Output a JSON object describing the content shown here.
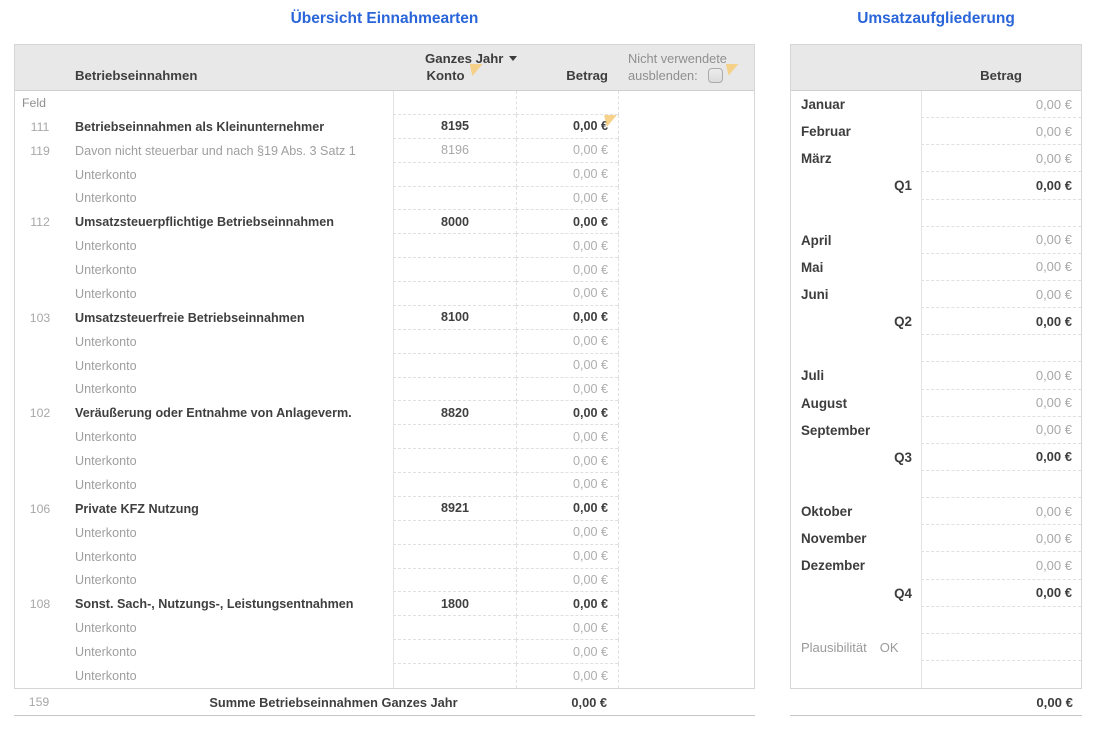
{
  "colors": {
    "title_blue": "#2a65d9",
    "header_bg": "#e8e8e8",
    "comment_flag": "#f6cd7d"
  },
  "icons": {
    "period_dropdown": "chevron-down-icon",
    "comment_marker": "comment-flag-icon",
    "hide_unused": "checkbox-icon"
  },
  "left_table": {
    "title": "Übersicht Einnahmearten",
    "period_selector": "Ganzes Jahr",
    "header": {
      "name": "Betriebseinnahmen",
      "konto": "Konto",
      "betrag": "Betrag",
      "hide_line1": "Nicht verwendete",
      "hide_line2": "ausblenden:",
      "checkbox_checked": false
    },
    "rows": [
      {
        "feld": "Feld",
        "label": "",
        "konto": "",
        "betrag": "",
        "bold": false,
        "comment": false,
        "feldrow": true
      },
      {
        "feld": "111",
        "label": "Betriebseinnahmen als Kleinunternehmer",
        "konto": "8195",
        "betrag": "0,00 €",
        "bold": true,
        "comment": true
      },
      {
        "feld": "119",
        "label": "Davon nicht steuerbar und nach §19 Abs. 3 Satz 1",
        "konto": "8196",
        "betrag": "0,00 €",
        "bold": false,
        "comment": false
      },
      {
        "feld": "",
        "label": "Unterkonto",
        "konto": "",
        "betrag": "0,00 €",
        "bold": false,
        "comment": false
      },
      {
        "feld": "",
        "label": "Unterkonto",
        "konto": "",
        "betrag": "0,00 €",
        "bold": false,
        "comment": false
      },
      {
        "feld": "112",
        "label": "Umsatzsteuerpflichtige Betriebseinnahmen",
        "konto": "8000",
        "betrag": "0,00 €",
        "bold": true,
        "comment": false
      },
      {
        "feld": "",
        "label": "Unterkonto",
        "konto": "",
        "betrag": "0,00 €",
        "bold": false,
        "comment": false
      },
      {
        "feld": "",
        "label": "Unterkonto",
        "konto": "",
        "betrag": "0,00 €",
        "bold": false,
        "comment": false
      },
      {
        "feld": "",
        "label": "Unterkonto",
        "konto": "",
        "betrag": "0,00 €",
        "bold": false,
        "comment": false
      },
      {
        "feld": "103",
        "label": "Umsatzsteuerfreie Betriebseinnahmen",
        "konto": "8100",
        "betrag": "0,00 €",
        "bold": true,
        "comment": false
      },
      {
        "feld": "",
        "label": "Unterkonto",
        "konto": "",
        "betrag": "0,00 €",
        "bold": false,
        "comment": false
      },
      {
        "feld": "",
        "label": "Unterkonto",
        "konto": "",
        "betrag": "0,00 €",
        "bold": false,
        "comment": false
      },
      {
        "feld": "",
        "label": "Unterkonto",
        "konto": "",
        "betrag": "0,00 €",
        "bold": false,
        "comment": false
      },
      {
        "feld": "102",
        "label": "Veräußerung oder Entnahme von Anlageverm.",
        "konto": "8820",
        "betrag": "0,00 €",
        "bold": true,
        "comment": false
      },
      {
        "feld": "",
        "label": "Unterkonto",
        "konto": "",
        "betrag": "0,00 €",
        "bold": false,
        "comment": false
      },
      {
        "feld": "",
        "label": "Unterkonto",
        "konto": "",
        "betrag": "0,00 €",
        "bold": false,
        "comment": false
      },
      {
        "feld": "",
        "label": "Unterkonto",
        "konto": "",
        "betrag": "0,00 €",
        "bold": false,
        "comment": false
      },
      {
        "feld": "106",
        "label": "Private KFZ Nutzung",
        "konto": "8921",
        "betrag": "0,00 €",
        "bold": true,
        "comment": false
      },
      {
        "feld": "",
        "label": "Unterkonto",
        "konto": "",
        "betrag": "0,00 €",
        "bold": false,
        "comment": false
      },
      {
        "feld": "",
        "label": "Unterkonto",
        "konto": "",
        "betrag": "0,00 €",
        "bold": false,
        "comment": false
      },
      {
        "feld": "",
        "label": "Unterkonto",
        "konto": "",
        "betrag": "0,00 €",
        "bold": false,
        "comment": false
      },
      {
        "feld": "108",
        "label": "Sonst. Sach-, Nutzungs-, Leistungsentnahmen",
        "konto": "1800",
        "betrag": "0,00 €",
        "bold": true,
        "comment": false
      },
      {
        "feld": "",
        "label": "Unterkonto",
        "konto": "",
        "betrag": "0,00 €",
        "bold": false,
        "comment": false
      },
      {
        "feld": "",
        "label": "Unterkonto",
        "konto": "",
        "betrag": "0,00 €",
        "bold": false,
        "comment": false
      },
      {
        "feld": "",
        "label": "Unterkonto",
        "konto": "",
        "betrag": "0,00 €",
        "bold": false,
        "comment": false
      }
    ],
    "footer": {
      "feld": "159",
      "label": "Summe Betriebseinnahmen Ganzes Jahr",
      "betrag": "0,00 €"
    }
  },
  "right_table": {
    "title": "Umsatzaufgliederung",
    "header_betrag": "Betrag",
    "rows": [
      {
        "type": "month",
        "label": "Januar",
        "value": "0,00 €"
      },
      {
        "type": "month",
        "label": "Februar",
        "value": "0,00 €"
      },
      {
        "type": "month",
        "label": "März",
        "value": "0,00 €"
      },
      {
        "type": "quarter",
        "label": "Q1",
        "value": "0,00 €"
      },
      {
        "type": "blank",
        "label": "",
        "value": ""
      },
      {
        "type": "month",
        "label": "April",
        "value": "0,00 €"
      },
      {
        "type": "month",
        "label": "Mai",
        "value": "0,00 €"
      },
      {
        "type": "month",
        "label": "Juni",
        "value": "0,00 €"
      },
      {
        "type": "quarter",
        "label": "Q2",
        "value": "0,00 €"
      },
      {
        "type": "blank",
        "label": "",
        "value": ""
      },
      {
        "type": "month",
        "label": "Juli",
        "value": "0,00 €"
      },
      {
        "type": "month",
        "label": "August",
        "value": "0,00 €"
      },
      {
        "type": "month",
        "label": "September",
        "value": "0,00 €"
      },
      {
        "type": "quarter",
        "label": "Q3",
        "value": "0,00 €"
      },
      {
        "type": "blank",
        "label": "",
        "value": ""
      },
      {
        "type": "month",
        "label": "Oktober",
        "value": "0,00 €"
      },
      {
        "type": "month",
        "label": "November",
        "value": "0,00 €"
      },
      {
        "type": "month",
        "label": "Dezember",
        "value": "0,00 €"
      },
      {
        "type": "quarter",
        "label": "Q4",
        "value": "0,00 €"
      },
      {
        "type": "blank",
        "label": "",
        "value": ""
      },
      {
        "type": "status",
        "label": "Plausibilität",
        "status": "OK",
        "value": ""
      },
      {
        "type": "blank",
        "label": "",
        "value": ""
      }
    ],
    "footer_value": "0,00 €"
  }
}
